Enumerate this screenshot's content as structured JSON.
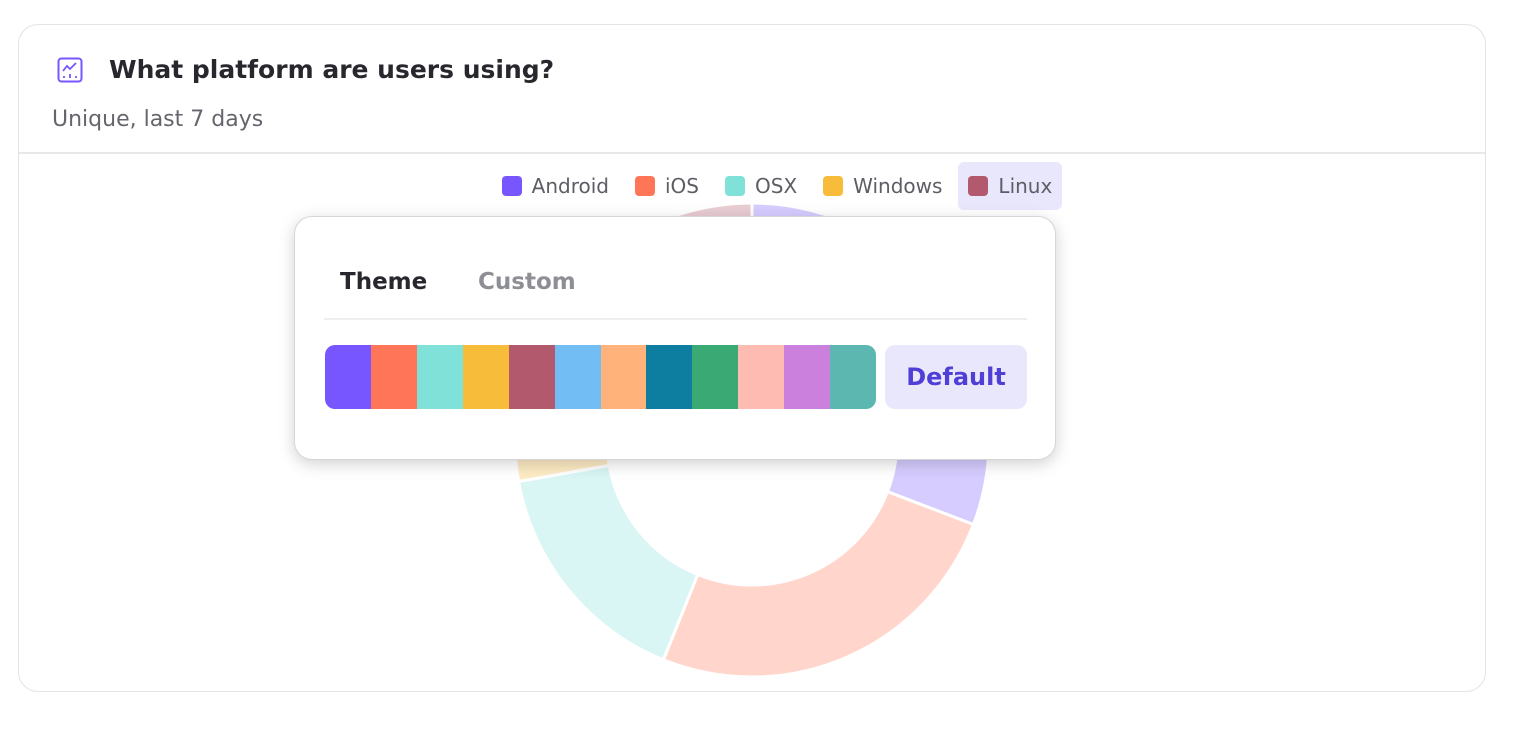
{
  "card": {
    "title": "What platform are users using?",
    "subtitle": "Unique, last 7 days",
    "icon": "line-chart-icon",
    "accent": "#7856FF"
  },
  "chart_data": {
    "type": "pie",
    "variant": "donut",
    "categories": [
      "Android",
      "iOS",
      "OSX",
      "Windows",
      "Linux"
    ],
    "values": [
      30.8,
      25.3,
      16.1,
      11.1,
      16.7
    ],
    "colors": [
      "#7856FF",
      "#FF7557",
      "#80E1D9",
      "#F8BC3B",
      "#B2596E"
    ],
    "legend": "top",
    "highlighted_legend": "Linux"
  },
  "popover": {
    "tabs": [
      {
        "label": "Theme",
        "active": true
      },
      {
        "label": "Custom",
        "active": false
      }
    ],
    "palette": [
      "#7856FF",
      "#FF7557",
      "#80E1D9",
      "#F8BC3B",
      "#B2596E",
      "#72BEF4",
      "#FFB27A",
      "#0D7EA0",
      "#3BA974",
      "#FEBBB2",
      "#CA80DC",
      "#5BB7AF"
    ],
    "default_label": "Default"
  }
}
